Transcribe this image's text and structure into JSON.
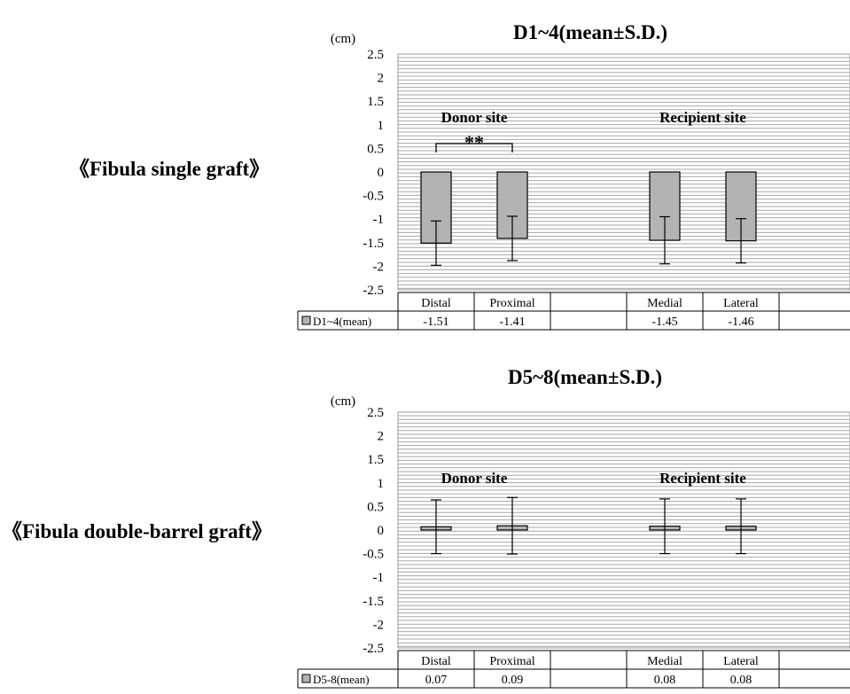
{
  "panels": [
    {
      "side_label": "《Fibula single graft》"
    },
    {
      "side_label": "《Fibula double-barrel graft》"
    }
  ],
  "chart_data": [
    {
      "type": "bar",
      "title": "D1~4(mean±S.D.)",
      "ylabel": "(cm)",
      "ylim": [
        -2.5,
        2.5
      ],
      "yticks": [
        "2.5",
        "2",
        "1.5",
        "1",
        "0.5",
        "0",
        "-0.5",
        "-1",
        "-1.5",
        "-2",
        "-2.5"
      ],
      "categories": [
        "Distal",
        "Proximal",
        "",
        "Medial",
        "Lateral",
        ""
      ],
      "series": [
        {
          "name": "D1~4(mean)",
          "values": [
            -1.51,
            -1.41,
            null,
            -1.45,
            -1.46,
            null
          ],
          "value_labels": [
            "-1.51",
            "-1.41",
            "",
            "-1.45",
            "-1.46",
            ""
          ]
        }
      ],
      "error_bars": [
        0.47,
        0.47,
        null,
        0.5,
        0.47,
        null
      ],
      "annotations": [
        {
          "text": "Donor site",
          "group": [
            0,
            1
          ]
        },
        {
          "text": "Recipient site",
          "group": [
            3,
            4
          ]
        },
        {
          "text": "**",
          "bracket": [
            0,
            1
          ]
        }
      ],
      "grid": true,
      "legend": "data-table",
      "bar_color": "#b3b3b3"
    },
    {
      "type": "bar",
      "title": "D5~8(mean±S.D.)",
      "ylabel": "(cm)",
      "ylim": [
        -2.5,
        2.5
      ],
      "yticks": [
        "2.5",
        "2",
        "1.5",
        "1",
        "0.5",
        "0",
        "-0.5",
        "-1",
        "-1.5",
        "-2",
        "-2.5"
      ],
      "categories": [
        "Distal",
        "Proximal",
        "",
        "Medial",
        "Lateral",
        ""
      ],
      "series": [
        {
          "name": "D5-8(mean)",
          "values": [
            0.07,
            0.09,
            null,
            0.08,
            0.08,
            null
          ],
          "value_labels": [
            "0.07",
            "0.09",
            "",
            "0.08",
            "0.08",
            ""
          ]
        }
      ],
      "error_bars": [
        0.57,
        0.6,
        null,
        0.58,
        0.58,
        null
      ],
      "annotations": [
        {
          "text": "Donor site",
          "group": [
            0,
            1
          ]
        },
        {
          "text": "Recipient site",
          "group": [
            3,
            4
          ]
        }
      ],
      "grid": true,
      "legend": "data-table",
      "bar_color": "#b3b3b3"
    }
  ]
}
